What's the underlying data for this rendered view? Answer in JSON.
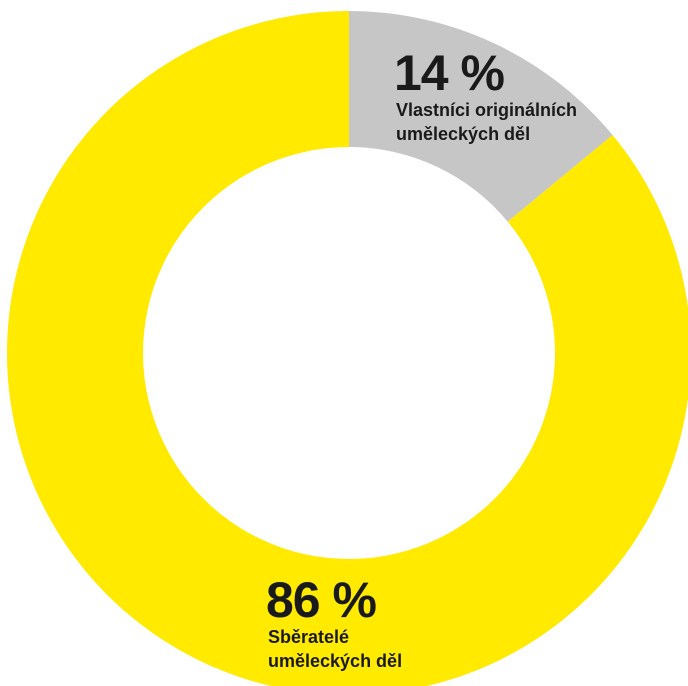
{
  "chart_data": {
    "type": "pie",
    "donut": true,
    "title": "",
    "slices": [
      {
        "value": 14,
        "value_label": "14 %",
        "label_lines": [
          "Vlastníci originálních",
          "uměleckých děl"
        ],
        "color": "#c6c6c6"
      },
      {
        "value": 86,
        "value_label": "86 %",
        "label_lines": [
          "Sběratelé",
          "uměleckých děl"
        ],
        "color": "#ffea00"
      }
    ],
    "start": "12 o'clock",
    "direction": "clockwise",
    "legend": "none"
  }
}
